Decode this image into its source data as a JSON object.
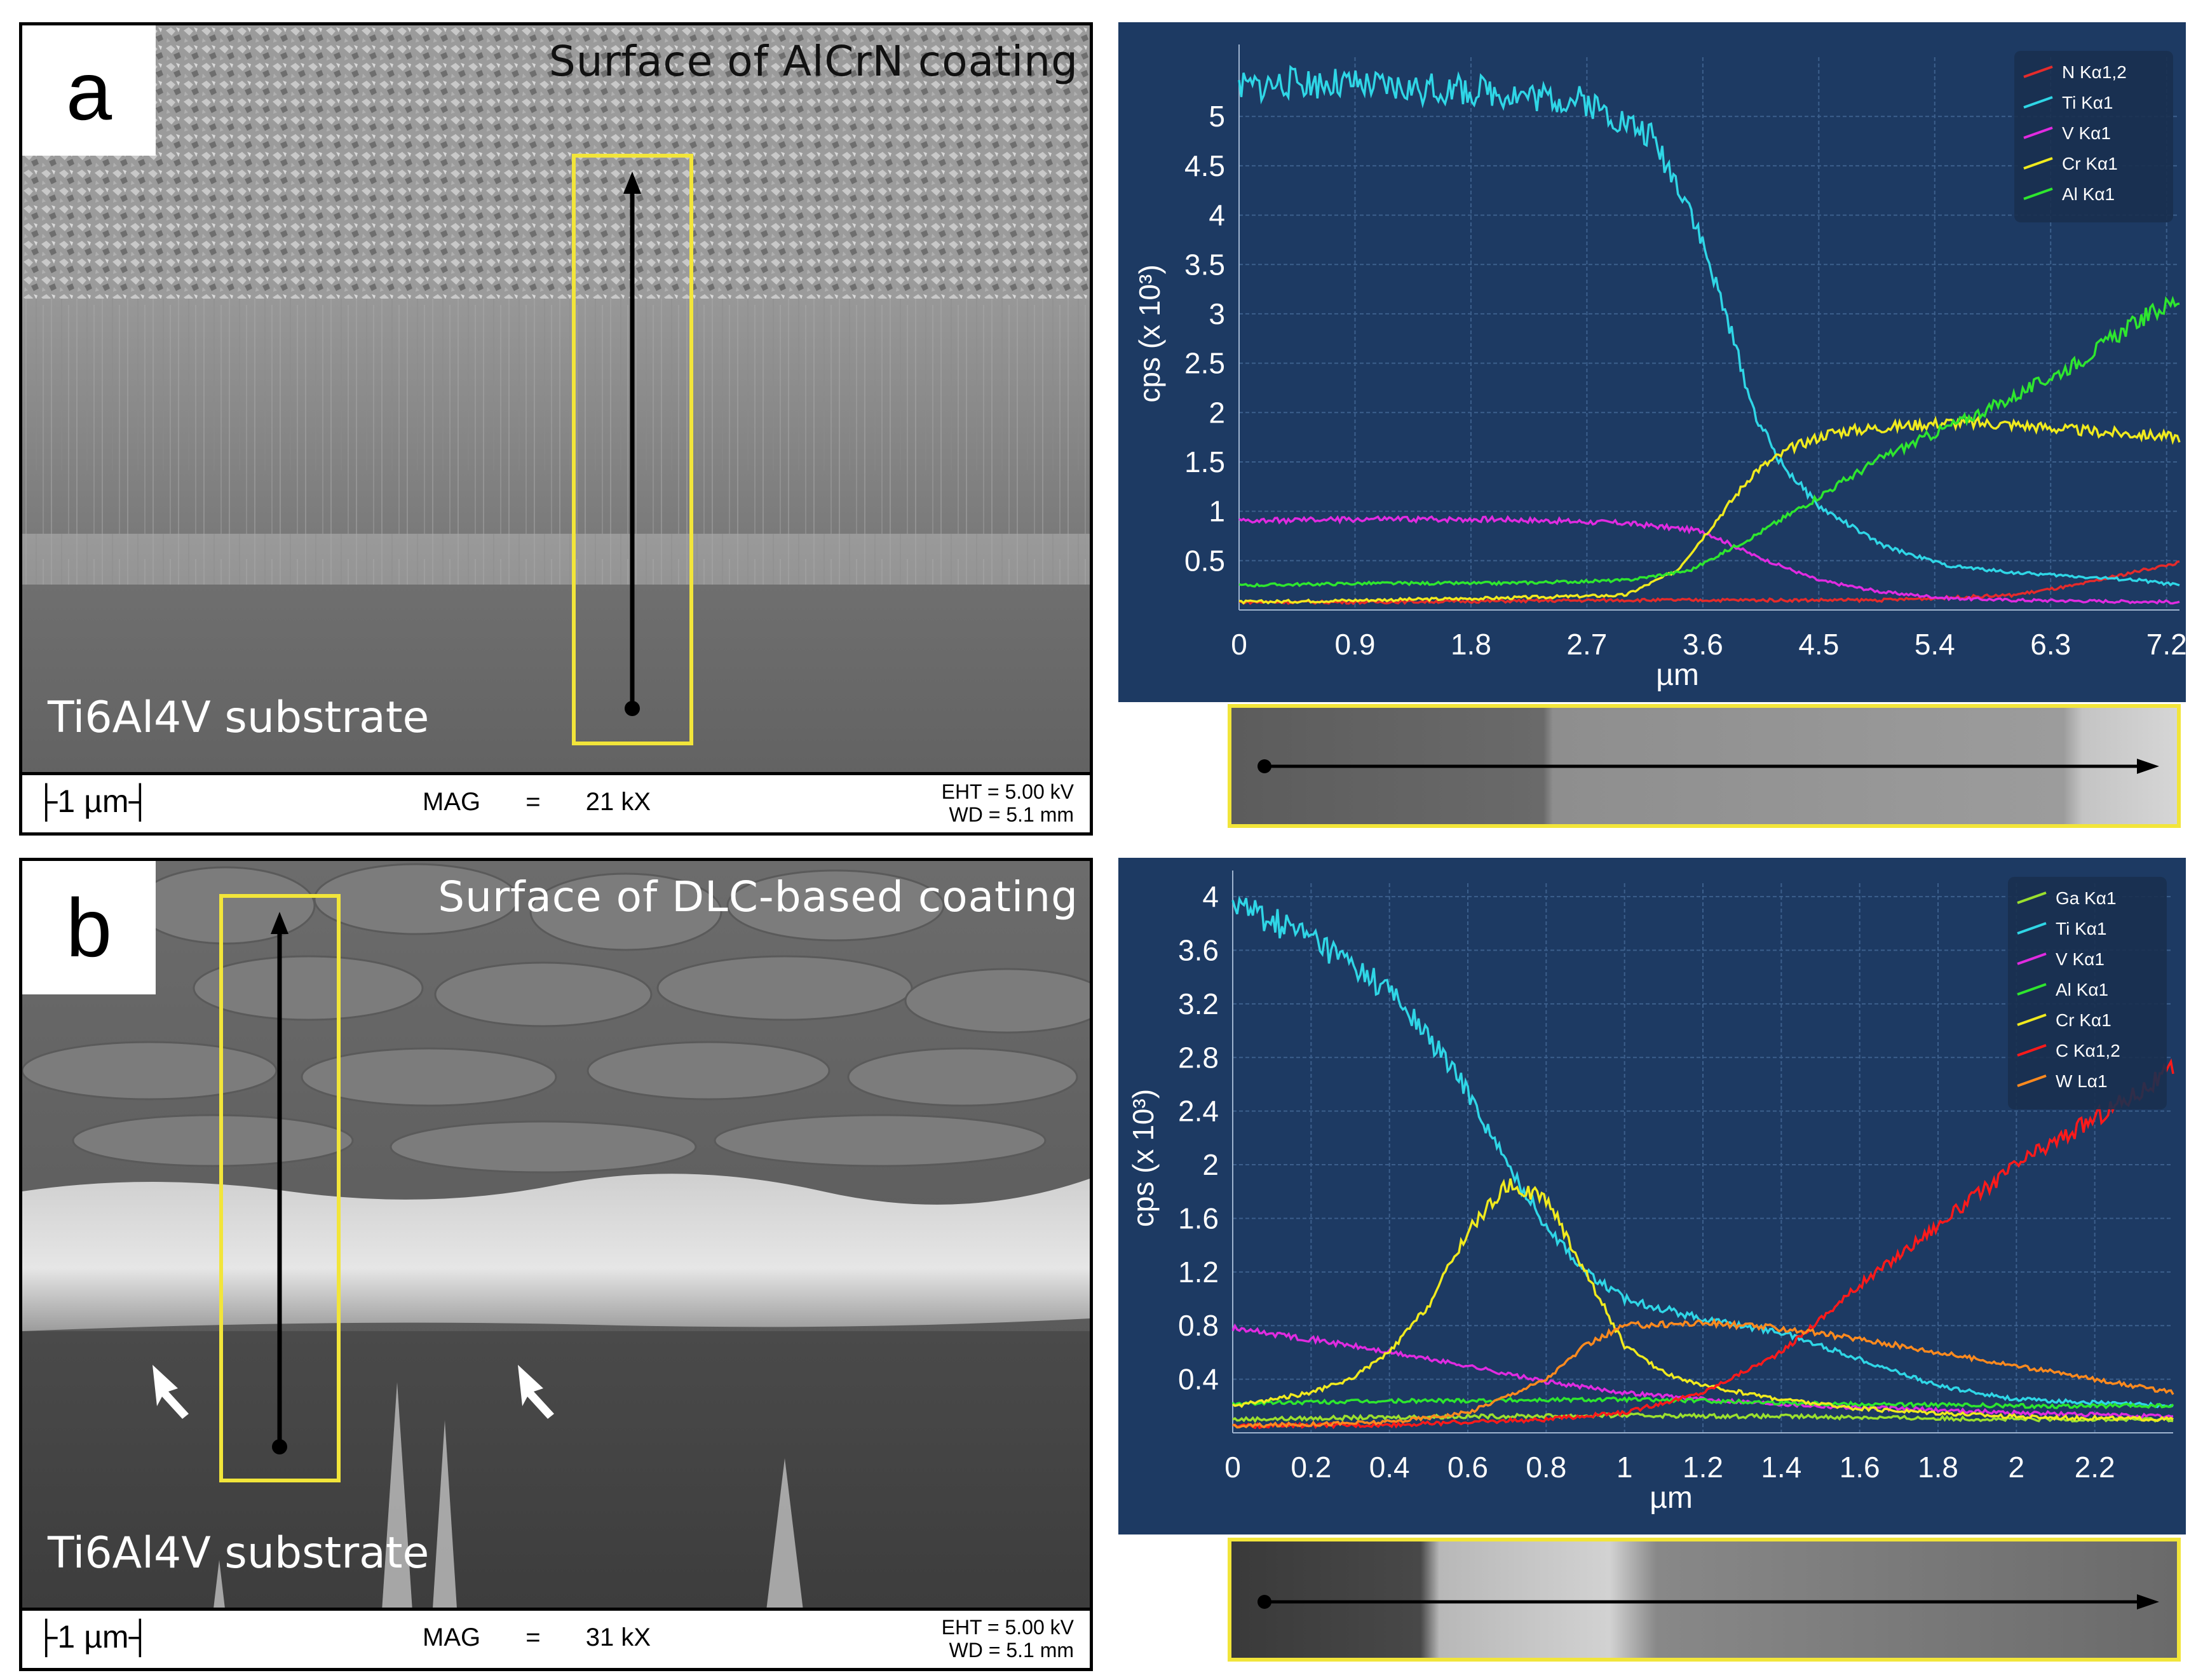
{
  "panel_a": {
    "label": "a",
    "surface_title": "Surface of AlCrN coating",
    "substrate_label": "Ti6Al4V substrate",
    "scale_bar": "├1 µm┤",
    "mag_label": "MAG",
    "mag_eq": "=",
    "mag_value": "21 kX",
    "eht": "EHT = 5.00 kV",
    "wd": "WD = 5.1 mm"
  },
  "panel_b": {
    "label": "b",
    "surface_title": "Surface of DLC-based coating",
    "substrate_label": "Ti6Al4V substrate",
    "scale_bar": "├1 µm┤",
    "mag_label": "MAG",
    "mag_eq": "=",
    "mag_value": "31 kX",
    "eht": "EHT = 5.00 kV",
    "wd": "WD = 5.1 mm"
  },
  "colors": {
    "chart_bg": "#1d3a63",
    "frame_yellow": "#f2e53a",
    "N": "#e52b2b",
    "Ti": "#2fd6e6",
    "V": "#e02be0",
    "Cr": "#f0ea1e",
    "Al": "#2ee62e",
    "Ga": "#9be02e",
    "C": "#ff1a1a",
    "W": "#ff8a1e"
  },
  "chart_data": [
    {
      "type": "line",
      "title": "",
      "xlabel": "µm",
      "ylabel": "cps (x 10³)",
      "xlim": [
        0,
        7.3
      ],
      "ylim": [
        0,
        5.6
      ],
      "xticks": [
        "0",
        "0.9",
        "1.8",
        "2.7",
        "3.6",
        "4.5",
        "5.4",
        "6.3",
        "7.2"
      ],
      "yticks": [
        "0.5",
        "1",
        "1.5",
        "2",
        "2.5",
        "3",
        "3.5",
        "4",
        "4.5",
        "5"
      ],
      "legend_position": "top-right",
      "series": [
        {
          "name": "N Kα1,2",
          "color": "#e52b2b",
          "x": [
            0,
            1,
            2,
            3,
            4,
            5,
            6,
            6.5,
            7,
            7.3
          ],
          "y": [
            0.08,
            0.08,
            0.09,
            0.1,
            0.1,
            0.1,
            0.15,
            0.25,
            0.4,
            0.48
          ]
        },
        {
          "name": "Ti Kα1",
          "color": "#2fd6e6",
          "x": [
            0,
            0.5,
            1,
            2,
            2.7,
            3.2,
            3.5,
            3.8,
            4.0,
            4.2,
            4.5,
            5.0,
            5.5,
            6.0,
            7.0,
            7.3
          ],
          "y": [
            5.3,
            5.35,
            5.3,
            5.25,
            5.15,
            4.8,
            4.1,
            2.9,
            2.0,
            1.5,
            1.05,
            0.65,
            0.45,
            0.38,
            0.3,
            0.25
          ]
        },
        {
          "name": "V Kα1",
          "color": "#e02be0",
          "x": [
            0,
            1,
            2,
            3,
            3.6,
            4.0,
            4.5,
            5.0,
            5.5,
            6.0,
            7.3
          ],
          "y": [
            0.9,
            0.92,
            0.92,
            0.88,
            0.8,
            0.55,
            0.3,
            0.18,
            0.12,
            0.1,
            0.08
          ]
        },
        {
          "name": "Cr Kα1",
          "color": "#f0ea1e",
          "x": [
            0,
            1,
            2,
            3,
            3.4,
            3.7,
            4.0,
            4.3,
            4.6,
            5.0,
            5.5,
            6.0,
            6.5,
            7.3
          ],
          "y": [
            0.08,
            0.1,
            0.12,
            0.15,
            0.4,
            0.9,
            1.4,
            1.65,
            1.8,
            1.85,
            1.9,
            1.88,
            1.82,
            1.75
          ]
        },
        {
          "name": "Al Kα1",
          "color": "#2ee62e",
          "x": [
            0,
            1,
            2,
            3,
            3.5,
            4.0,
            4.5,
            5.0,
            5.5,
            6.0,
            6.5,
            7.0,
            7.3
          ],
          "y": [
            0.25,
            0.27,
            0.27,
            0.3,
            0.4,
            0.75,
            1.15,
            1.55,
            1.85,
            2.15,
            2.5,
            2.95,
            3.15
          ]
        }
      ]
    },
    {
      "type": "line",
      "title": "",
      "xlabel": "µm",
      "ylabel": "cps (x 10³)",
      "xlim": [
        0,
        2.4
      ],
      "ylim": [
        0,
        4.1
      ],
      "xticks": [
        "0",
        "0.2",
        "0.4",
        "0.6",
        "0.8",
        "1",
        "1.2",
        "1.4",
        "1.6",
        "1.8",
        "2",
        "2.2"
      ],
      "yticks": [
        "0.4",
        "0.8",
        "1.2",
        "1.6",
        "2",
        "2.4",
        "2.8",
        "3.2",
        "3.6",
        "4"
      ],
      "legend_position": "top-right",
      "series": [
        {
          "name": "Ga Kα1",
          "color": "#9be02e",
          "x": [
            0,
            0.5,
            1,
            1.5,
            2,
            2.4
          ],
          "y": [
            0.1,
            0.12,
            0.13,
            0.12,
            0.1,
            0.1
          ]
        },
        {
          "name": "Ti Kα1",
          "color": "#2fd6e6",
          "x": [
            0,
            0.2,
            0.4,
            0.5,
            0.6,
            0.7,
            0.8,
            0.9,
            1.0,
            1.2,
            1.4,
            1.6,
            1.8,
            2.0,
            2.4
          ],
          "y": [
            3.95,
            3.7,
            3.3,
            2.95,
            2.55,
            2.0,
            1.55,
            1.2,
            1.0,
            0.85,
            0.75,
            0.55,
            0.35,
            0.25,
            0.2
          ]
        },
        {
          "name": "V Kα1",
          "color": "#e02be0",
          "x": [
            0,
            0.2,
            0.4,
            0.6,
            0.8,
            1.0,
            1.2,
            1.5,
            2.0,
            2.4
          ],
          "y": [
            0.78,
            0.7,
            0.6,
            0.5,
            0.38,
            0.3,
            0.25,
            0.2,
            0.15,
            0.12
          ]
        },
        {
          "name": "Al Kα1",
          "color": "#2ee62e",
          "x": [
            0,
            0.5,
            1,
            1.5,
            2,
            2.4
          ],
          "y": [
            0.22,
            0.24,
            0.25,
            0.22,
            0.2,
            0.2
          ]
        },
        {
          "name": "Cr Kα1",
          "color": "#f0ea1e",
          "x": [
            0,
            0.2,
            0.3,
            0.4,
            0.5,
            0.6,
            0.7,
            0.8,
            0.9,
            1.0,
            1.1,
            1.2,
            1.4,
            1.6,
            2.0,
            2.4
          ],
          "y": [
            0.2,
            0.3,
            0.4,
            0.6,
            0.95,
            1.5,
            1.85,
            1.75,
            1.2,
            0.65,
            0.45,
            0.35,
            0.25,
            0.18,
            0.12,
            0.1
          ]
        },
        {
          "name": "C Kα1,2",
          "color": "#ff1a1a",
          "x": [
            0,
            0.4,
            0.8,
            1.0,
            1.2,
            1.4,
            1.6,
            1.8,
            2.0,
            2.2,
            2.4
          ],
          "y": [
            0.05,
            0.06,
            0.1,
            0.15,
            0.3,
            0.6,
            1.1,
            1.55,
            2.0,
            2.35,
            2.7
          ]
        },
        {
          "name": "W Lα1",
          "color": "#ff8a1e",
          "x": [
            0,
            0.4,
            0.6,
            0.8,
            0.9,
            1.0,
            1.2,
            1.4,
            1.6,
            1.8,
            2.0,
            2.2,
            2.4
          ],
          "y": [
            0.05,
            0.08,
            0.15,
            0.4,
            0.65,
            0.8,
            0.82,
            0.78,
            0.7,
            0.6,
            0.5,
            0.4,
            0.3
          ]
        }
      ]
    }
  ]
}
